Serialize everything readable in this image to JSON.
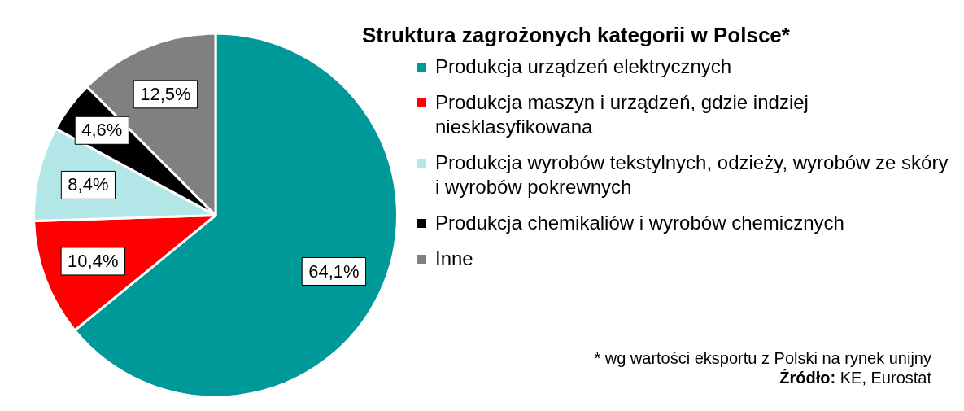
{
  "chart_data": {
    "type": "pie",
    "title": "Struktura zagrożonych kategorii w Polsce*",
    "categories": [
      "Produkcja urządzeń elektrycznych",
      "Produkcja maszyn i urządzeń, gdzie indziej niesklasyfikowana",
      "Produkcja wyrobów tekstylnych, odzieży, wyrobów ze skóry i wyrobów pokrewnych",
      "Produkcja chemikaliów i wyrobów chemicznych",
      "Inne"
    ],
    "values": [
      64.1,
      10.4,
      8.4,
      4.6,
      12.5
    ],
    "colors": [
      "#009999",
      "#ff0000",
      "#b3e6e6",
      "#000000",
      "#808080"
    ],
    "value_labels": [
      "64,1%",
      "10,4%",
      "8,4%",
      "4,6%",
      "12,5%"
    ],
    "legend": "right",
    "annotations": [
      "* wg wartości eksportu z Polski na rynek unijny",
      "Źródło: KE, Eurostat"
    ]
  }
}
